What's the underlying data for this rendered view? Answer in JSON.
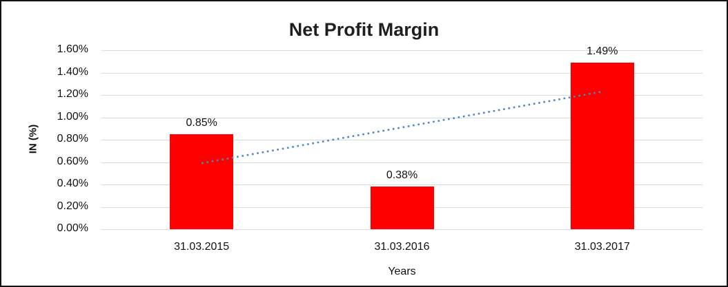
{
  "figure": {
    "title": "Net Profit Margin"
  },
  "chart_data": {
    "type": "bar",
    "title": "Net Profit Margin",
    "categories": [
      "31.03.2015",
      "31.03.2016",
      "31.03.2017"
    ],
    "values": [
      0.85,
      0.38,
      1.49
    ],
    "data_labels": [
      "0.85%",
      "0.38%",
      "1.49%"
    ],
    "xlabel": "Years",
    "ylabel": "IN (%)",
    "ylim": [
      0,
      1.6
    ],
    "ytick_step": 0.2,
    "ytick_labels": [
      "0.00%",
      "0.20%",
      "0.40%",
      "0.60%",
      "0.80%",
      "1.00%",
      "1.20%",
      "1.40%",
      "1.60%"
    ],
    "grid": "horizontal",
    "legend": "none",
    "bar_color": "#ff0000",
    "gridline_color": "#d9d9d9",
    "trendline": {
      "style": "dotted",
      "color": "#4a86c8",
      "start_category_index": 0,
      "end_category_index": 2,
      "start_value": 0.59,
      "end_value": 1.23
    }
  }
}
